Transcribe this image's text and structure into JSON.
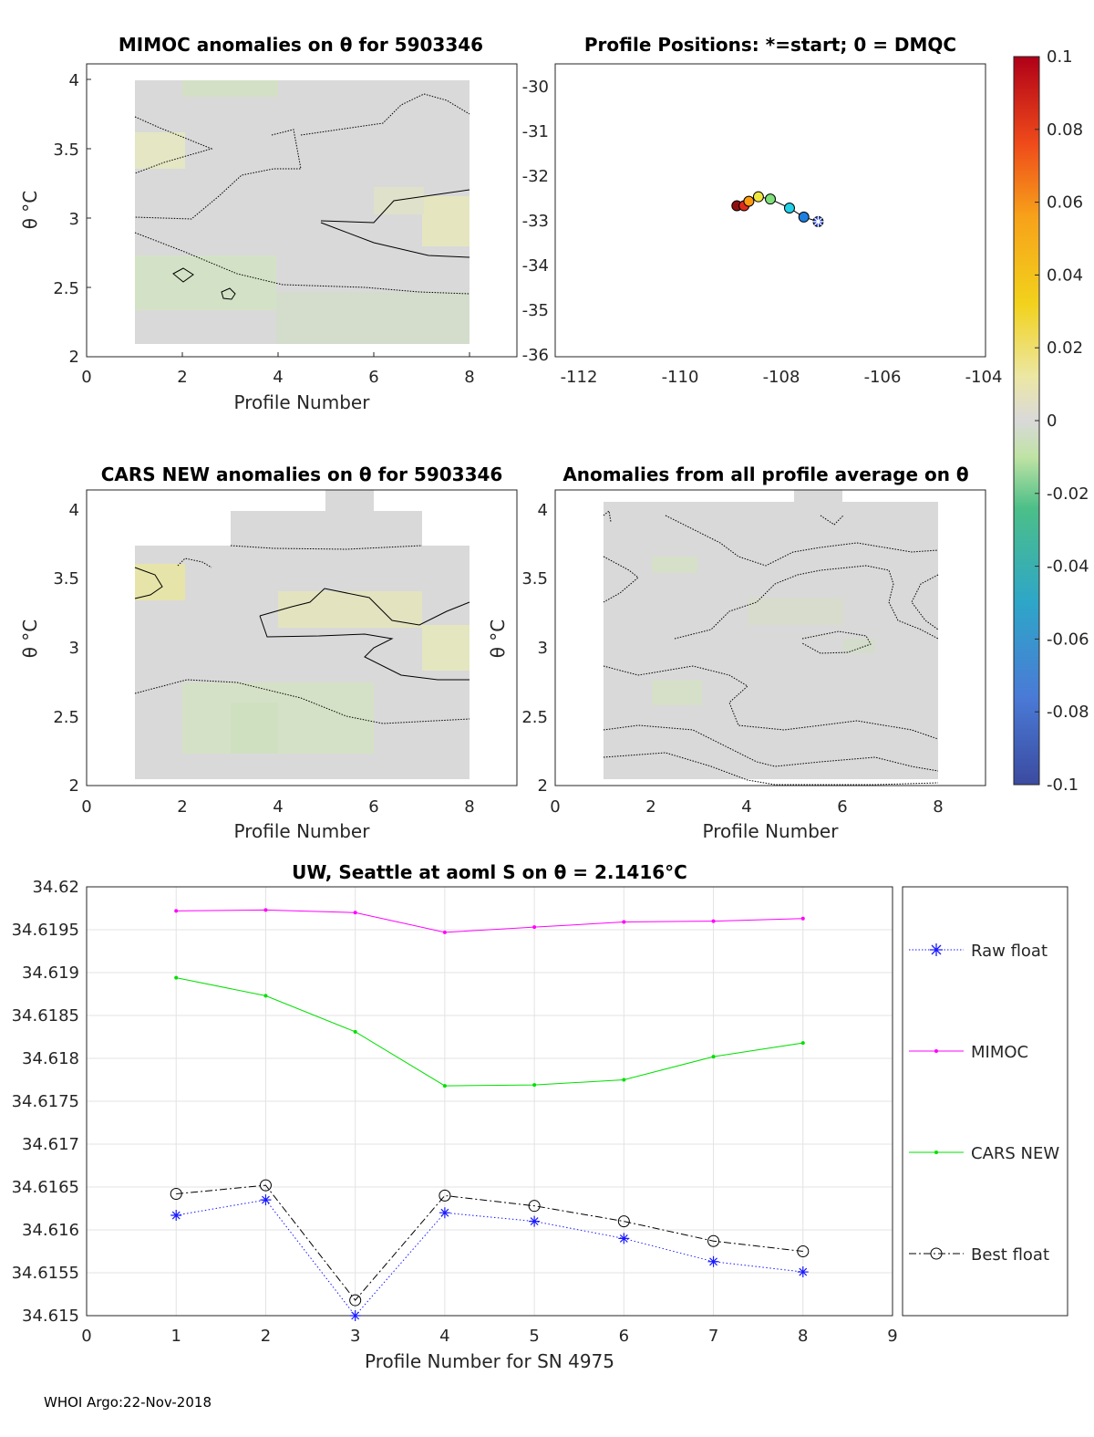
{
  "footer": "WHOI Argo:22-Nov-2018",
  "colors": {
    "mimoc": "#ff00ff",
    "cars": "#00e000",
    "raw": "#1a1aff",
    "best": "#000000",
    "field": "#d9d9d9"
  },
  "chart_data": [
    {
      "type": "heatmap",
      "id": "mimoc",
      "title": "MIMOC anomalies on θ  for 5903346",
      "xlabel": "Profile Number",
      "ylabel": "θ °C",
      "xlim": [
        0,
        9
      ],
      "ylim": [
        2,
        4.1
      ],
      "xticks": [
        "0",
        "2",
        "4",
        "6",
        "8"
      ],
      "yticks": [
        "2",
        "2.5",
        "3",
        "3.5",
        "4"
      ],
      "data_extent": {
        "x": [
          1,
          8
        ],
        "y": [
          2.1,
          4
        ]
      }
    },
    {
      "type": "scatter",
      "id": "positions",
      "title": "Profile Positions: *=start; 0 = DMQC",
      "xlim": [
        -113,
        -104
      ],
      "ylim": [
        -36,
        -29.5
      ],
      "xticks": [
        "-112",
        "-110",
        "-108",
        "-106",
        "-104"
      ],
      "yticks": [
        "-30",
        "-31",
        "-32",
        "-33",
        "-34",
        "-35",
        "-36"
      ],
      "lon": [
        -107.5,
        -107.8,
        -108.1,
        -108.5,
        -108.75,
        -108.95,
        -109.05,
        -109.2
      ],
      "lat": [
        -33.0,
        -32.9,
        -32.7,
        -32.5,
        -32.45,
        -32.55,
        -32.65,
        -32.65
      ],
      "point_colors": [
        "#1f3fcc",
        "#1e7fe0",
        "#22d0e8",
        "#7fe07a",
        "#f0e640",
        "#ff9a10",
        "#e02b1a",
        "#901010"
      ],
      "start_marker": "*"
    },
    {
      "type": "heatmap",
      "id": "cars",
      "title": "CARS NEW anomalies on θ for 5903346",
      "xlabel": "Profile Number",
      "ylabel": "θ °C",
      "xlim": [
        0,
        9
      ],
      "ylim": [
        2,
        4.1
      ],
      "xticks": [
        "0",
        "2",
        "4",
        "6",
        "8"
      ],
      "yticks": [
        "2",
        "2.5",
        "3",
        "3.5",
        "4"
      ],
      "data_extent": {
        "x": [
          1,
          8
        ],
        "y": [
          2.05,
          3.75
        ]
      }
    },
    {
      "type": "heatmap",
      "id": "avg",
      "title": "Anomalies from all profile average on θ",
      "xlabel": "Profile Number",
      "ylabel": "θ °C",
      "xlim": [
        0,
        9
      ],
      "ylim": [
        2,
        4.1
      ],
      "xticks": [
        "0",
        "2",
        "4",
        "6",
        "8"
      ],
      "yticks": [
        "2",
        "2.5",
        "3",
        "3.5",
        "4"
      ],
      "data_extent": {
        "x": [
          1,
          8
        ],
        "y": [
          2.05,
          4
        ]
      }
    },
    {
      "type": "colorbar",
      "id": "colorbar",
      "range": [
        -0.1,
        0.1
      ],
      "ticks": [
        "0.1",
        "0.08",
        "0.06",
        "0.04",
        "0.02",
        "0",
        "-0.02",
        "-0.04",
        "-0.06",
        "-0.08",
        "-0.1"
      ]
    },
    {
      "type": "line",
      "id": "salinity",
      "title": "UW, Seattle at aoml S on θ = 2.1416°C",
      "xlabel": "Profile Number for SN 4975",
      "ylabel": "",
      "xlim": [
        0,
        9
      ],
      "ylim": [
        34.615,
        34.62
      ],
      "xticks": [
        "0",
        "1",
        "2",
        "3",
        "4",
        "5",
        "6",
        "7",
        "8",
        "9"
      ],
      "yticks": [
        "34.615",
        "34.6155",
        "34.616",
        "34.6165",
        "34.617",
        "34.6175",
        "34.618",
        "34.6185",
        "34.619",
        "34.6195",
        "34.62"
      ],
      "x": [
        1,
        2,
        3,
        4,
        5,
        6,
        7,
        8
      ],
      "series": [
        {
          "name": "Raw float",
          "values": [
            34.61617,
            34.61635,
            34.615,
            34.6162,
            34.6161,
            34.6159,
            34.61563,
            34.61551
          ]
        },
        {
          "name": "MIMOC",
          "values": [
            34.61972,
            34.61973,
            34.6197,
            34.61947,
            34.61953,
            34.61959,
            34.6196,
            34.61963
          ]
        },
        {
          "name": "CARS NEW",
          "values": [
            34.61894,
            34.61873,
            34.61831,
            34.61768,
            34.61769,
            34.61775,
            34.61802,
            34.61818
          ]
        },
        {
          "name": "Best float",
          "values": [
            34.61642,
            34.61652,
            34.61518,
            34.6164,
            34.61628,
            34.6161,
            34.61587,
            34.61575
          ]
        }
      ]
    }
  ]
}
